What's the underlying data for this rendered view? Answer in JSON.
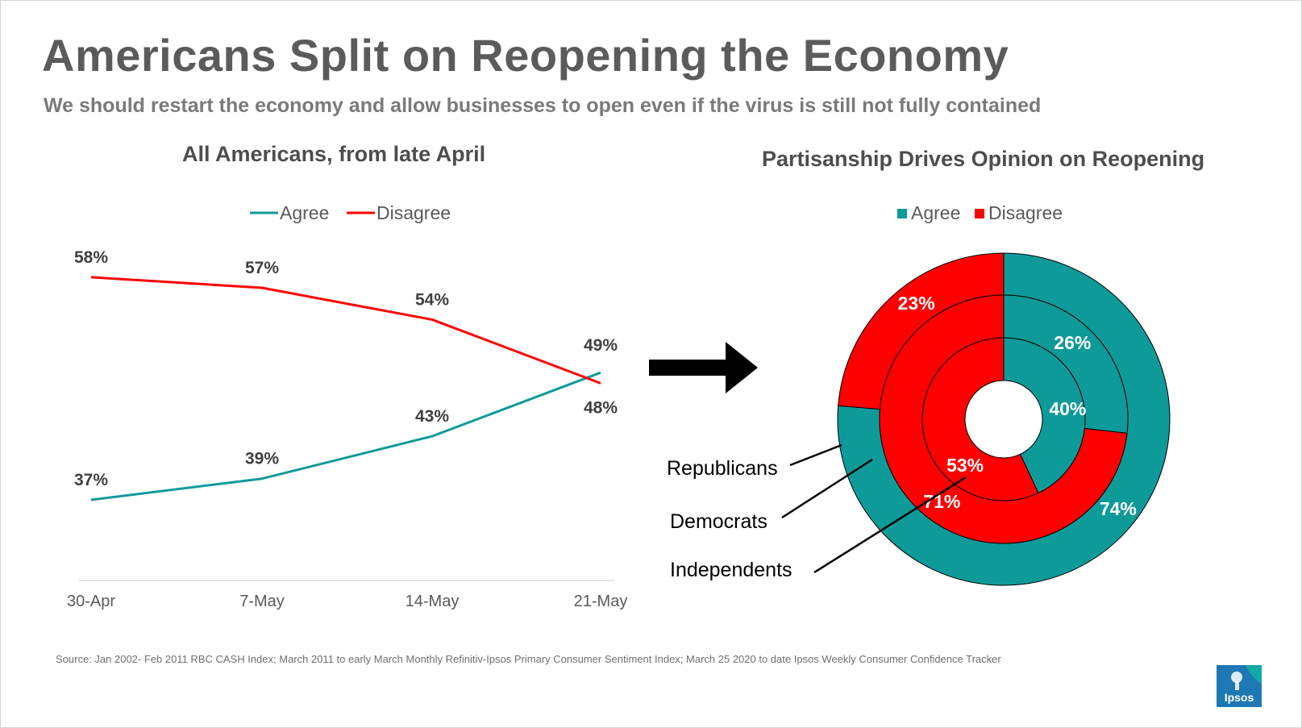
{
  "title": "Americans Split on Reopening the Economy",
  "subtitle": "We should restart the economy and allow businesses to open even if the virus is still not fully contained",
  "source": "Source: Jan 2002- Feb 2011 RBC CASH Index; March 2011 to early March Monthly Refinitiv-Ipsos Primary Consumer Sentiment Index; March 25 2020 to date Ipsos Weekly Consumer Confidence Tracker",
  "logo_text": "Ipsos",
  "colors": {
    "agree": "#0f9a9a",
    "disagree": "#ff0000",
    "text": "#404040"
  },
  "chart_data": [
    {
      "type": "line",
      "title": "All Americans, from late April",
      "categories": [
        "30-Apr",
        "7-May",
        "14-May",
        "21-May"
      ],
      "series": [
        {
          "name": "Agree",
          "values": [
            37,
            39,
            43,
            49
          ],
          "labels": [
            "37%",
            "39%",
            "43%",
            "49%"
          ]
        },
        {
          "name": "Disagree",
          "values": [
            58,
            57,
            54,
            48
          ],
          "labels": [
            "58%",
            "57%",
            "54%",
            "48%"
          ]
        }
      ],
      "ylim": [
        30,
        62
      ],
      "legend": "top-center"
    },
    {
      "type": "pie",
      "title": "Partisanship Drives Opinion on Reopening",
      "legend": [
        "Agree",
        "Disagree"
      ],
      "rings": [
        {
          "name": "Republicans",
          "agree": 74,
          "disagree": 23,
          "labels": [
            "74%",
            "23%"
          ]
        },
        {
          "name": "Democrats",
          "agree": 26,
          "disagree": 71,
          "labels": [
            "26%",
            "71%"
          ]
        },
        {
          "name": "Independents",
          "agree": 40,
          "disagree": 53,
          "labels": [
            "40%",
            "53%"
          ]
        }
      ]
    }
  ]
}
